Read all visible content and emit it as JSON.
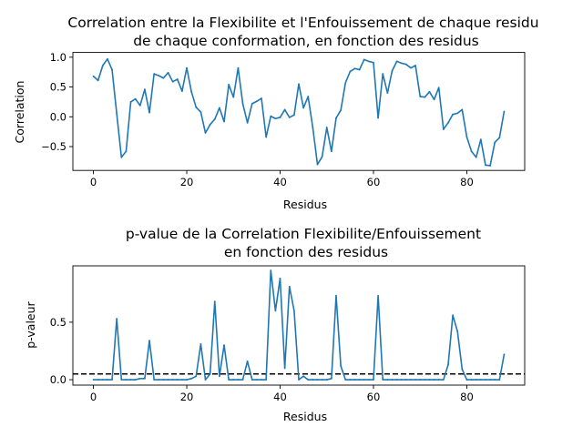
{
  "chart_data": [
    {
      "type": "line",
      "title_lines": [
        "Correlation entre la Flexibilite et l'Enfouissement de chaque residu",
        "de chaque conformation, en fonction des residus"
      ],
      "xlabel": "Residus",
      "ylabel": "Correlation",
      "xlim": [
        -4.4,
        92.4
      ],
      "ylim": [
        -0.9,
        1.08
      ],
      "xticks": [
        0,
        20,
        40,
        60,
        80
      ],
      "yticks": [
        -0.5,
        0.0,
        0.5,
        1.0
      ],
      "xtick_labels": [
        "0",
        "20",
        "40",
        "60",
        "80"
      ],
      "ytick_labels": [
        "−0.5",
        "0.0",
        "0.5",
        "1.0"
      ],
      "color": "#1f77b4",
      "series": [
        {
          "name": "Correlation",
          "x": [
            0,
            1,
            2,
            3,
            4,
            5,
            6,
            7,
            8,
            9,
            10,
            11,
            12,
            13,
            14,
            15,
            16,
            17,
            18,
            19,
            20,
            21,
            22,
            23,
            24,
            25,
            26,
            27,
            28,
            29,
            30,
            31,
            32,
            33,
            34,
            35,
            36,
            37,
            38,
            39,
            40,
            41,
            42,
            43,
            44,
            45,
            46,
            47,
            48,
            49,
            50,
            51,
            52,
            53,
            54,
            55,
            56,
            57,
            58,
            59,
            60,
            61,
            62,
            63,
            64,
            65,
            66,
            67,
            68,
            69,
            70,
            71,
            72,
            73,
            74,
            75,
            76,
            77,
            78,
            79,
            80,
            81,
            82,
            83,
            84,
            85,
            86,
            87,
            88
          ],
          "values": [
            0.68,
            0.61,
            0.86,
            0.97,
            0.79,
            0.05,
            -0.68,
            -0.58,
            0.25,
            0.3,
            0.19,
            0.46,
            0.07,
            0.72,
            0.69,
            0.65,
            0.74,
            0.59,
            0.63,
            0.43,
            0.82,
            0.42,
            0.16,
            0.08,
            -0.27,
            -0.13,
            -0.04,
            0.15,
            -0.08,
            0.54,
            0.33,
            0.82,
            0.22,
            -0.1,
            0.22,
            0.26,
            0.31,
            -0.34,
            0.01,
            -0.03,
            -0.01,
            0.12,
            -0.01,
            0.03,
            0.55,
            0.15,
            0.34,
            -0.18,
            -0.8,
            -0.67,
            -0.18,
            -0.58,
            -0.02,
            0.11,
            0.57,
            0.76,
            0.81,
            0.79,
            0.96,
            0.93,
            0.91,
            -0.02,
            0.72,
            0.4,
            0.77,
            0.93,
            0.9,
            0.88,
            0.82,
            0.86,
            0.34,
            0.33,
            0.42,
            0.29,
            0.49,
            -0.21,
            -0.1,
            0.04,
            0.06,
            0.12,
            -0.34,
            -0.58,
            -0.68,
            -0.38,
            -0.81,
            -0.82,
            -0.43,
            -0.35,
            0.09
          ]
        }
      ]
    },
    {
      "type": "line",
      "title_lines": [
        "p-value de la Correlation Flexibilite/Enfouissement",
        "en fonction des residus"
      ],
      "xlabel": "Residus",
      "ylabel": "p-valeur",
      "xlim": [
        -4.4,
        92.4
      ],
      "ylim": [
        -0.047,
        0.99
      ],
      "xticks": [
        0,
        20,
        40,
        60,
        80
      ],
      "yticks": [
        0.0,
        0.5
      ],
      "xtick_labels": [
        "0",
        "20",
        "40",
        "60",
        "80"
      ],
      "ytick_labels": [
        "0.0",
        "0.5"
      ],
      "color": "#1f77b4",
      "threshold": {
        "value": 0.05,
        "color": "#000000",
        "style": "dashed"
      },
      "series": [
        {
          "name": "p-value",
          "x": [
            0,
            1,
            2,
            3,
            4,
            5,
            6,
            7,
            8,
            9,
            10,
            11,
            12,
            13,
            14,
            15,
            16,
            17,
            18,
            19,
            20,
            21,
            22,
            23,
            24,
            25,
            26,
            27,
            28,
            29,
            30,
            31,
            32,
            33,
            34,
            35,
            36,
            37,
            38,
            39,
            40,
            41,
            42,
            43,
            44,
            45,
            46,
            47,
            48,
            49,
            50,
            51,
            52,
            53,
            54,
            55,
            56,
            57,
            58,
            59,
            60,
            61,
            62,
            63,
            64,
            65,
            66,
            67,
            68,
            69,
            70,
            71,
            72,
            73,
            74,
            75,
            76,
            77,
            78,
            79,
            80,
            81,
            82,
            83,
            84,
            85,
            86,
            87,
            88
          ],
          "values": [
            0.0,
            0.0,
            0.0,
            0.0,
            0.0,
            0.53,
            0.0,
            0.0,
            0.0,
            0.0,
            0.01,
            0.01,
            0.34,
            0.0,
            0.0,
            0.0,
            0.0,
            0.0,
            0.0,
            0.0,
            0.0,
            0.01,
            0.03,
            0.31,
            0.0,
            0.05,
            0.68,
            0.03,
            0.3,
            0.0,
            0.0,
            0.0,
            0.0,
            0.16,
            0.0,
            0.0,
            0.0,
            0.0,
            0.95,
            0.6,
            0.88,
            0.1,
            0.81,
            0.6,
            0.0,
            0.03,
            0.0,
            0.0,
            0.0,
            0.0,
            0.0,
            0.01,
            0.73,
            0.12,
            0.0,
            0.0,
            0.0,
            0.0,
            0.0,
            0.0,
            0.0,
            0.73,
            0.0,
            0.0,
            0.0,
            0.0,
            0.0,
            0.0,
            0.0,
            0.0,
            0.0,
            0.0,
            0.0,
            0.0,
            0.0,
            0.0,
            0.13,
            0.56,
            0.42,
            0.09,
            0.0,
            0.0,
            0.0,
            0.0,
            0.0,
            0.0,
            0.0,
            0.0,
            0.22
          ]
        }
      ]
    }
  ]
}
